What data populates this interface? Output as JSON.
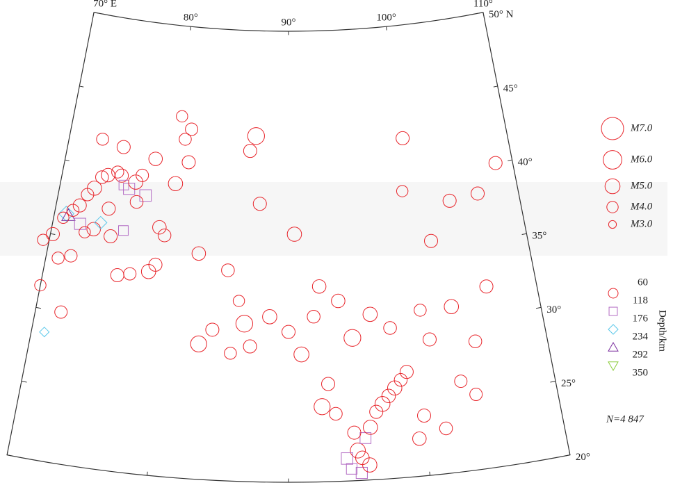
{
  "map": {
    "lon_range": [
      70,
      110
    ],
    "lat_range": [
      20,
      50
    ],
    "lon_labels": [
      {
        "value": 70,
        "label": "70° E"
      },
      {
        "value": 80,
        "label": "80°"
      },
      {
        "value": 90,
        "label": "90°"
      },
      {
        "value": 100,
        "label": "100°"
      },
      {
        "value": 110,
        "label": "110°"
      }
    ],
    "lat_labels": [
      {
        "value": 50,
        "label": "50° N"
      },
      {
        "value": 45,
        "label": "45°"
      },
      {
        "value": 40,
        "label": "40°"
      },
      {
        "value": 35,
        "label": "35°"
      },
      {
        "value": 30,
        "label": "30°"
      },
      {
        "value": 25,
        "label": "25°"
      },
      {
        "value": 20,
        "label": "20°"
      }
    ]
  },
  "magnitude_legend": [
    {
      "value": 7,
      "label": "M7.0"
    },
    {
      "value": 6,
      "label": "M6.0"
    },
    {
      "value": 5,
      "label": "M5.0"
    },
    {
      "value": 4,
      "label": "M4.0"
    },
    {
      "value": 3,
      "label": "M3.0"
    }
  ],
  "magnitude_color": "#e8242a",
  "depth_legend": {
    "title": "Depth/km",
    "ticks": [
      60,
      118,
      176,
      234,
      292,
      350
    ],
    "symbols": [
      {
        "shape": "circle",
        "color": "#e8242a"
      },
      {
        "shape": "square",
        "color": "#b36bc4"
      },
      {
        "shape": "diamond",
        "color": "#5bc8ea"
      },
      {
        "shape": "triangle-up",
        "color": "#7a2e9e"
      },
      {
        "shape": "triangle-down",
        "color": "#8ccc3c"
      }
    ]
  },
  "count": {
    "value": 4847,
    "label": "N=4 847"
  },
  "events": [
    {
      "lon": 71.0,
      "lat": 36.5,
      "mag": 5.0,
      "depth": 210
    },
    {
      "lon": 71.2,
      "lat": 36.4,
      "mag": 4.5,
      "depth": 240
    },
    {
      "lon": 70.8,
      "lat": 36.2,
      "mag": 4.0,
      "depth": 110
    },
    {
      "lon": 71.5,
      "lat": 36.8,
      "mag": 4.2,
      "depth": 100
    },
    {
      "lon": 72,
      "lat": 37.2,
      "mag": 4.5,
      "depth": 20
    },
    {
      "lon": 72.5,
      "lat": 38.0,
      "mag": 4.3,
      "depth": 30
    },
    {
      "lon": 73,
      "lat": 38.5,
      "mag": 4.8,
      "depth": 15
    },
    {
      "lon": 73.5,
      "lat": 39.3,
      "mag": 4.4,
      "depth": 20
    },
    {
      "lon": 74,
      "lat": 39.5,
      "mag": 4.6,
      "depth": 25
    },
    {
      "lon": 74.8,
      "lat": 39.8,
      "mag": 4.2,
      "depth": 10
    },
    {
      "lon": 75.2,
      "lat": 39.6,
      "mag": 4.5,
      "depth": 15
    },
    {
      "lon": 75.5,
      "lat": 39.0,
      "mag": 4.0,
      "depth": 130
    },
    {
      "lon": 76,
      "lat": 38.8,
      "mag": 4.5,
      "depth": 120
    },
    {
      "lon": 76.5,
      "lat": 39.3,
      "mag": 4.8,
      "depth": 30
    },
    {
      "lon": 77,
      "lat": 39.8,
      "mag": 4.3,
      "depth": 20
    },
    {
      "lon": 77.5,
      "lat": 38.5,
      "mag": 4.6,
      "depth": 125
    },
    {
      "lon": 76.8,
      "lat": 38.0,
      "mag": 4.4,
      "depth": 15
    },
    {
      "lon": 72.3,
      "lat": 36.0,
      "mag": 4.5,
      "depth": 150
    },
    {
      "lon": 72.8,
      "lat": 35.5,
      "mag": 4.0,
      "depth": 20
    },
    {
      "lon": 73.5,
      "lat": 35.8,
      "mag": 4.6,
      "depth": 15
    },
    {
      "lon": 74,
      "lat": 36.3,
      "mag": 4.3,
      "depth": 200
    },
    {
      "lon": 75,
      "lat": 35.5,
      "mag": 4.5,
      "depth": 25
    },
    {
      "lon": 76,
      "lat": 36.0,
      "mag": 4.0,
      "depth": 140
    },
    {
      "lon": 74.5,
      "lat": 37.3,
      "mag": 4.5,
      "depth": 20
    },
    {
      "lon": 70.2,
      "lat": 35.0,
      "mag": 4.5,
      "depth": 15
    },
    {
      "lon": 69.5,
      "lat": 34.5,
      "mag": 4.0,
      "depth": 20
    },
    {
      "lon": 71,
      "lat": 33.5,
      "mag": 4.2,
      "depth": 15
    },
    {
      "lon": 72,
      "lat": 33.8,
      "mag": 4.3,
      "depth": 20
    },
    {
      "lon": 79,
      "lat": 36.5,
      "mag": 4.6,
      "depth": 25
    },
    {
      "lon": 79.5,
      "lat": 36.0,
      "mag": 4.4,
      "depth": 20
    },
    {
      "lon": 80,
      "lat": 39.5,
      "mag": 4.8,
      "depth": 15
    },
    {
      "lon": 81,
      "lat": 41,
      "mag": 4.5,
      "depth": 20
    },
    {
      "lon": 80.5,
      "lat": 42.5,
      "mag": 4.2,
      "depth": 15
    },
    {
      "lon": 78,
      "lat": 41,
      "mag": 4.6,
      "depth": 20
    },
    {
      "lon": 75,
      "lat": 41.5,
      "mag": 4.5,
      "depth": 20
    },
    {
      "lon": 73,
      "lat": 41.8,
      "mag": 4.2,
      "depth": 25
    },
    {
      "lon": 76,
      "lat": 33,
      "mag": 4.5,
      "depth": 20
    },
    {
      "lon": 77,
      "lat": 33.2,
      "mag": 4.3,
      "depth": 15
    },
    {
      "lon": 79,
      "lat": 34,
      "mag": 4.5,
      "depth": 20
    },
    {
      "lon": 78.5,
      "lat": 33.5,
      "mag": 4.8,
      "depth": 10
    },
    {
      "lon": 82.5,
      "lat": 35,
      "mag": 4.6,
      "depth": 15
    },
    {
      "lon": 85,
      "lat": 34,
      "mag": 4.4,
      "depth": 20
    },
    {
      "lon": 86,
      "lat": 32,
      "mag": 4.0,
      "depth": 10
    },
    {
      "lon": 86.5,
      "lat": 30.5,
      "mag": 5.5,
      "depth": 15
    },
    {
      "lon": 87,
      "lat": 29,
      "mag": 4.5,
      "depth": 20
    },
    {
      "lon": 88.5,
      "lat": 31,
      "mag": 4.8,
      "depth": 10
    },
    {
      "lon": 90,
      "lat": 30,
      "mag": 4.5,
      "depth": 15
    },
    {
      "lon": 91,
      "lat": 28.5,
      "mag": 5.0,
      "depth": 20
    },
    {
      "lon": 92,
      "lat": 31,
      "mag": 4.4,
      "depth": 10
    },
    {
      "lon": 92.5,
      "lat": 33,
      "mag": 4.6,
      "depth": 15
    },
    {
      "lon": 90.5,
      "lat": 36.5,
      "mag": 4.8,
      "depth": 15
    },
    {
      "lon": 87.5,
      "lat": 38.5,
      "mag": 4.5,
      "depth": 20
    },
    {
      "lon": 84,
      "lat": 30,
      "mag": 4.5,
      "depth": 15
    },
    {
      "lon": 83,
      "lat": 29,
      "mag": 5.3,
      "depth": 15
    },
    {
      "lon": 85.5,
      "lat": 28.5,
      "mag": 4.2,
      "depth": 20
    },
    {
      "lon": 94,
      "lat": 32,
      "mag": 4.6,
      "depth": 15
    },
    {
      "lon": 95,
      "lat": 29.5,
      "mag": 5.5,
      "depth": 20
    },
    {
      "lon": 96.5,
      "lat": 31,
      "mag": 4.8,
      "depth": 10
    },
    {
      "lon": 98,
      "lat": 30,
      "mag": 4.4,
      "depth": 15
    },
    {
      "lon": 100.5,
      "lat": 31,
      "mag": 4.2,
      "depth": 20
    },
    {
      "lon": 101,
      "lat": 29,
      "mag": 4.5,
      "depth": 10
    },
    {
      "lon": 103,
      "lat": 31,
      "mag": 4.8,
      "depth": 15
    },
    {
      "lon": 104.5,
      "lat": 28.5,
      "mag": 4.4,
      "depth": 20
    },
    {
      "lon": 106,
      "lat": 32,
      "mag": 4.5,
      "depth": 15
    },
    {
      "lon": 104,
      "lat": 25,
      "mag": 4.3,
      "depth": 20
    },
    {
      "lon": 102,
      "lat": 35.5,
      "mag": 4.5,
      "depth": 10
    },
    {
      "lon": 100,
      "lat": 39,
      "mag": 4.0,
      "depth": 15
    },
    {
      "lon": 104,
      "lat": 38,
      "mag": 4.5,
      "depth": 20
    },
    {
      "lon": 95,
      "lat": 22,
      "mag": 5.0,
      "depth": 20
    },
    {
      "lon": 95.3,
      "lat": 21.5,
      "mag": 4.6,
      "depth": 30
    },
    {
      "lon": 95.6,
      "lat": 22.8,
      "mag": 4.4,
      "depth": 125
    },
    {
      "lon": 96,
      "lat": 23.5,
      "mag": 4.8,
      "depth": 20
    },
    {
      "lon": 96.5,
      "lat": 24.5,
      "mag": 4.5,
      "depth": 15
    },
    {
      "lon": 97,
      "lat": 25,
      "mag": 5.0,
      "depth": 20
    },
    {
      "lon": 97.5,
      "lat": 25.5,
      "mag": 4.6,
      "depth": 15
    },
    {
      "lon": 98,
      "lat": 26,
      "mag": 4.8,
      "depth": 10
    },
    {
      "lon": 98.5,
      "lat": 26.5,
      "mag": 4.4,
      "depth": 20
    },
    {
      "lon": 99,
      "lat": 27,
      "mag": 4.5,
      "depth": 15
    },
    {
      "lon": 94.5,
      "lat": 20.8,
      "mag": 4.3,
      "depth": 130
    },
    {
      "lon": 95.2,
      "lat": 20.5,
      "mag": 4.5,
      "depth": 120
    },
    {
      "lon": 95.8,
      "lat": 21,
      "mag": 4.8,
      "depth": 25
    },
    {
      "lon": 94.2,
      "lat": 21.5,
      "mag": 4.6,
      "depth": 135
    },
    {
      "lon": 94.8,
      "lat": 23.2,
      "mag": 4.5,
      "depth": 20
    },
    {
      "lon": 93.5,
      "lat": 24.5,
      "mag": 4.4,
      "depth": 15
    },
    {
      "lon": 92.5,
      "lat": 25,
      "mag": 5.3,
      "depth": 20
    },
    {
      "lon": 93,
      "lat": 26.5,
      "mag": 4.5,
      "depth": 10
    },
    {
      "lon": 100,
      "lat": 24,
      "mag": 4.5,
      "depth": 15
    },
    {
      "lon": 101.5,
      "lat": 23,
      "mag": 4.4,
      "depth": 20
    },
    {
      "lon": 103,
      "lat": 26,
      "mag": 4.3,
      "depth": 10
    },
    {
      "lon": 99.5,
      "lat": 22.5,
      "mag": 4.6,
      "depth": 20
    },
    {
      "lon": 87,
      "lat": 43,
      "mag": 5.5,
      "depth": 10
    },
    {
      "lon": 86.5,
      "lat": 42,
      "mag": 4.5,
      "depth": 15
    },
    {
      "lon": 80,
      "lat": 44,
      "mag": 4.0,
      "depth": 20
    },
    {
      "lon": 81,
      "lat": 43.2,
      "mag": 4.3,
      "depth": 15
    },
    {
      "lon": 100.5,
      "lat": 42.5,
      "mag": 4.5,
      "depth": 10
    },
    {
      "lon": 108.5,
      "lat": 40,
      "mag": 4.5,
      "depth": 15
    },
    {
      "lon": 106.5,
      "lat": 38.2,
      "mag": 4.5,
      "depth": 20
    },
    {
      "lon": 70,
      "lat": 31.5,
      "mag": 4.0,
      "depth": 20
    },
    {
      "lon": 72,
      "lat": 30,
      "mag": 4.3,
      "depth": 15
    },
    {
      "lon": 71,
      "lat": 28.5,
      "mag": 3.5,
      "depth": 180
    }
  ]
}
